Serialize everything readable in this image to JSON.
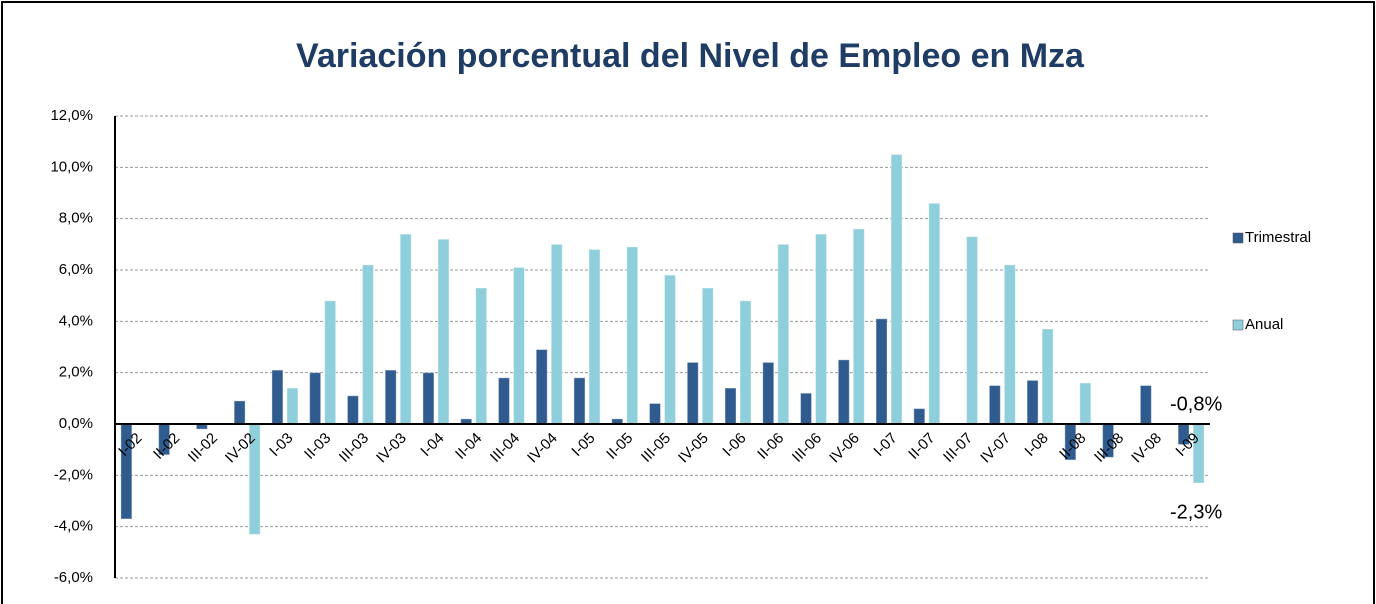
{
  "chart_data": {
    "type": "bar",
    "title": "Variación porcentual del Nivel de Empleo en Mza",
    "categories": [
      "I-02",
      "II-02",
      "III-02",
      "IV-02",
      "I-03",
      "II-03",
      "III-03",
      "IV-03",
      "I-04",
      "II-04",
      "III-04",
      "IV-04",
      "I-05",
      "II-05",
      "III-05",
      "IV-05",
      "I-06",
      "II-06",
      "III-06",
      "IV-06",
      "I-07",
      "II-07",
      "III-07",
      "IV-07",
      "I-08",
      "II-08",
      "III-08",
      "IV-08",
      "I-09"
    ],
    "series": [
      {
        "name": "Trimestral",
        "color": "#2f5b8e",
        "values": [
          -3.7,
          -1.2,
          -0.2,
          0.9,
          2.1,
          2.0,
          1.1,
          2.1,
          2.0,
          0.2,
          1.8,
          2.9,
          1.8,
          0.2,
          0.8,
          2.4,
          1.4,
          2.4,
          1.2,
          2.5,
          4.1,
          0.6,
          0.0,
          1.5,
          1.7,
          -1.4,
          -1.3,
          1.5,
          -0.8
        ],
        "value_labels": [
          null,
          null,
          null,
          null,
          null,
          null,
          null,
          null,
          null,
          null,
          null,
          null,
          null,
          null,
          null,
          null,
          null,
          null,
          null,
          null,
          null,
          null,
          null,
          null,
          null,
          null,
          null,
          null,
          "-0,8%"
        ]
      },
      {
        "name": "Anual",
        "color": "#8fcfdc",
        "values": [
          null,
          null,
          null,
          -4.3,
          1.4,
          4.8,
          6.2,
          7.4,
          7.2,
          5.3,
          6.1,
          7.0,
          6.8,
          6.9,
          5.8,
          5.3,
          4.8,
          7.0,
          7.4,
          7.6,
          10.5,
          8.6,
          7.3,
          6.2,
          3.7,
          1.6,
          null,
          null,
          -2.3
        ],
        "value_labels": [
          null,
          null,
          null,
          null,
          null,
          null,
          null,
          null,
          null,
          null,
          null,
          null,
          null,
          null,
          null,
          null,
          null,
          null,
          null,
          null,
          null,
          null,
          null,
          null,
          null,
          null,
          null,
          null,
          "-2,3%"
        ]
      }
    ],
    "ylim": [
      -6,
      12
    ],
    "yticks": [
      {
        "value": -6,
        "label": "-6,0%"
      },
      {
        "value": -4,
        "label": "-4,0%"
      },
      {
        "value": -2,
        "label": "-2,0%"
      },
      {
        "value": 0,
        "label": "0,0%"
      },
      {
        "value": 2,
        "label": "2,0%"
      },
      {
        "value": 4,
        "label": "4,0%"
      },
      {
        "value": 6,
        "label": "6,0%"
      },
      {
        "value": 8,
        "label": "8,0%"
      },
      {
        "value": 10,
        "label": "10,0%"
      },
      {
        "value": 12,
        "label": "12,0%"
      }
    ],
    "grid": true,
    "legend": "right"
  }
}
